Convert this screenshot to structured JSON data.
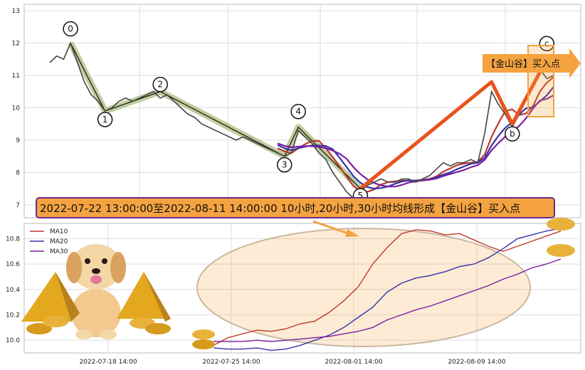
{
  "chart_data": [
    {
      "type": "line",
      "panel": "top",
      "ylim": [
        6.6,
        13.2
      ],
      "yticks": [
        "7",
        "8",
        "9",
        "10",
        "11",
        "12",
        "13"
      ],
      "grid": true,
      "price_series": [
        11.4,
        11.6,
        11.5,
        12.0,
        11.4,
        10.8,
        10.4,
        10.2,
        9.9,
        10.0,
        10.2,
        10.3,
        10.2,
        10.3,
        10.4,
        10.5,
        10.3,
        10.4,
        10.2,
        10.0,
        9.8,
        9.7,
        9.5,
        9.4,
        9.3,
        9.2,
        9.1,
        9.0,
        9.1,
        9.0,
        8.9,
        8.8,
        8.7,
        8.6,
        8.5,
        8.6,
        9.3,
        9.1,
        8.9,
        8.6,
        8.4,
        8.0,
        7.7,
        7.4,
        7.2,
        7.4,
        7.6,
        7.7,
        7.8,
        7.7,
        7.7,
        7.8,
        7.8,
        7.7,
        7.8,
        7.9,
        8.1,
        8.3,
        8.2,
        8.3,
        8.3,
        8.4,
        8.3,
        9.2,
        10.5,
        10.1,
        9.8,
        9.4,
        9.8,
        10.3,
        10.7,
        11.2,
        10.9,
        11.0
      ],
      "wave_points": [
        {
          "label": "0",
          "y": 12.0
        },
        {
          "label": "1",
          "y": 9.9
        },
        {
          "label": "2",
          "y": 10.5
        },
        {
          "label": "3",
          "y": 8.5
        },
        {
          "label": "4",
          "y": 9.4
        },
        {
          "label": "5",
          "y": 7.5
        },
        {
          "label": "b",
          "y": 9.5
        },
        {
          "label": "c",
          "y": 11.5
        }
      ],
      "buy_tag": "【金山谷】买入点"
    },
    {
      "type": "line",
      "panel": "bottom",
      "ylim": [
        9.9,
        10.92
      ],
      "yticks": [
        "10.0",
        "10.2",
        "10.4",
        "10.6",
        "10.8"
      ],
      "xticks": [
        "2022-07-18 14:00",
        "2022-07-25 14:00",
        "2022-08-01 14:00",
        "2022-08-09 14:00"
      ],
      "grid": true,
      "legend_position": "top-left",
      "series": [
        {
          "name": "MA10",
          "color": "#c0392b",
          "values": [
            9.96,
            10.02,
            10.05,
            10.08,
            10.07,
            10.09,
            10.13,
            10.15,
            10.22,
            10.31,
            10.42,
            10.6,
            10.73,
            10.84,
            10.87,
            10.86,
            10.83,
            10.84,
            10.79,
            10.74,
            10.7,
            10.74,
            10.78,
            10.82,
            10.86
          ]
        },
        {
          "name": "MA20",
          "color": "#3333aa",
          "values": [
            9.94,
            9.93,
            9.93,
            9.94,
            9.92,
            9.93,
            9.96,
            10.0,
            10.04,
            10.1,
            10.18,
            10.26,
            10.38,
            10.45,
            10.49,
            10.51,
            10.54,
            10.58,
            10.6,
            10.65,
            10.72,
            10.8,
            10.83,
            10.86,
            10.88
          ]
        },
        {
          "name": "MA30",
          "color": "#7b1fa2",
          "values": [
            9.99,
            9.99,
            9.99,
            10.0,
            9.99,
            10.0,
            10.01,
            10.02,
            10.03,
            10.05,
            10.07,
            10.1,
            10.16,
            10.2,
            10.24,
            10.27,
            10.31,
            10.35,
            10.39,
            10.43,
            10.48,
            10.52,
            10.57,
            10.6,
            10.64
          ]
        }
      ]
    }
  ],
  "banner_text": "2022-07-22 13:00:00至2022-08-11 14:00:00 10小时,20小时,30小时均线形成【金山谷】买入点",
  "colors": {
    "accent_orange": "#f4a340",
    "trend_red": "#e8541c",
    "wave_green": "#b5c48c"
  }
}
